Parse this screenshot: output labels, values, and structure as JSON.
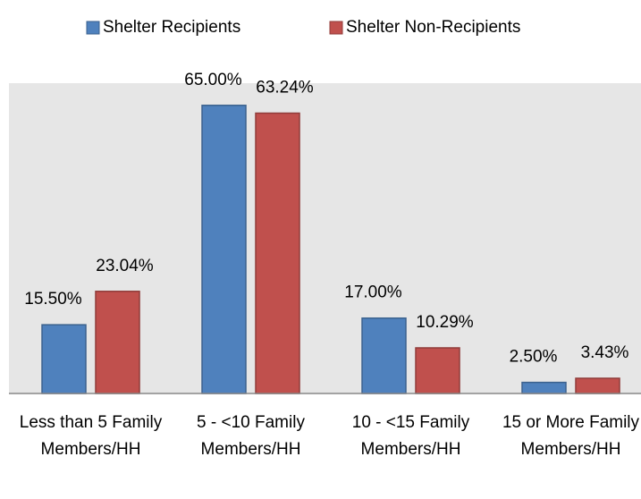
{
  "chart_data": {
    "type": "bar",
    "categories": [
      "Less than 5 Family Members/HH",
      "5 - <10 Family Members/HH",
      "10 - <15 Family Members/HH",
      "15 or More Family Members/HH"
    ],
    "series": [
      {
        "name": "Shelter Recipients",
        "color": "#4f81bd",
        "values": [
          15.5,
          65,
          17,
          2.5
        ],
        "value_labels": [
          "15.50%",
          "65.00%",
          "17.00%",
          "2.50%"
        ]
      },
      {
        "name": "Shelter Non-Recipients",
        "color": "#c0504d",
        "values": [
          23.04,
          63.24,
          10.29,
          3.43
        ],
        "value_labels": [
          "23.04%",
          "63.24%",
          "10.29%",
          "3.43%"
        ]
      }
    ],
    "ylim": [
      0,
      70
    ],
    "legend": "top"
  }
}
